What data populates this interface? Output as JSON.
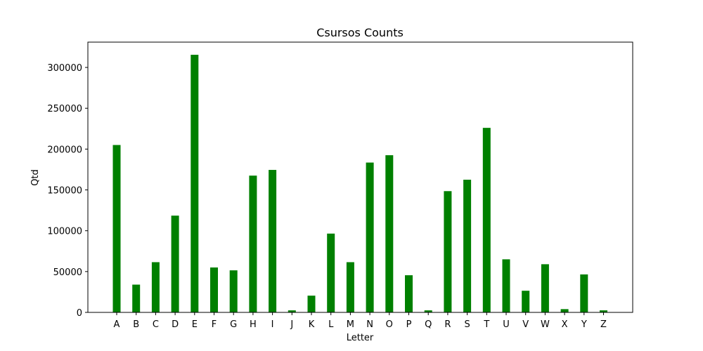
{
  "chart_data": {
    "type": "bar",
    "title": "Csursos Counts",
    "xlabel": "Letter",
    "ylabel": "Qtd",
    "categories": [
      "A",
      "B",
      "C",
      "D",
      "E",
      "F",
      "G",
      "H",
      "I",
      "J",
      "K",
      "L",
      "M",
      "N",
      "O",
      "P",
      "Q",
      "R",
      "S",
      "T",
      "U",
      "V",
      "W",
      "X",
      "Y",
      "Z"
    ],
    "values": [
      205000,
      34000,
      61500,
      118500,
      315500,
      55000,
      51500,
      167500,
      174500,
      2500,
      20500,
      96500,
      61500,
      183500,
      192500,
      45500,
      2500,
      148500,
      162500,
      226000,
      65000,
      26500,
      59000,
      4000,
      46500,
      2500
    ],
    "ylim": [
      0,
      331000
    ],
    "yticks": [
      0,
      50000,
      100000,
      150000,
      200000,
      250000,
      300000
    ],
    "bar_color": "#008000",
    "grid": false
  }
}
